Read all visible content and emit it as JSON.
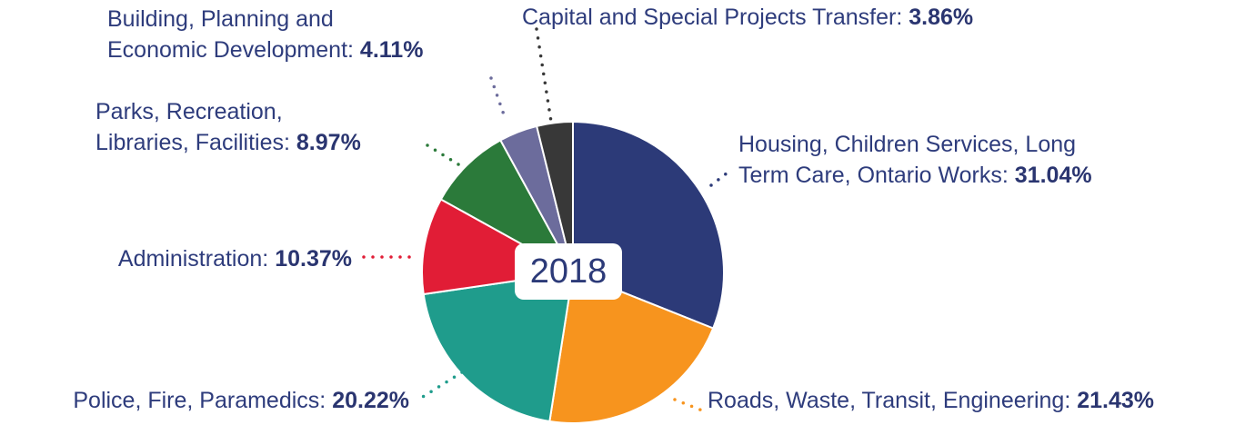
{
  "chart_data": {
    "type": "pie",
    "center_label": "2018",
    "categories": [
      "Housing, Children Services, Long\nTerm Care, Ontario Works:",
      "Roads, Waste, Transit, Engineering:",
      "Police, Fire, Paramedics:",
      "Administration:",
      "Parks, Recreation,\nLibraries, Facilities:",
      "Building, Planning and\nEconomic Development:",
      "Capital and Special Projects Transfer:"
    ],
    "values": [
      31.04,
      21.43,
      20.22,
      10.37,
      8.97,
      4.11,
      3.86
    ],
    "value_labels": [
      "31.04%",
      "21.43%",
      "20.22%",
      "10.37%",
      "8.97%",
      "4.11%",
      "3.86%"
    ],
    "colors": [
      "#2c3a78",
      "#f7941e",
      "#1f9c8c",
      "#e11d36",
      "#2b7a3a",
      "#6c6c9c",
      "#383838"
    ]
  }
}
